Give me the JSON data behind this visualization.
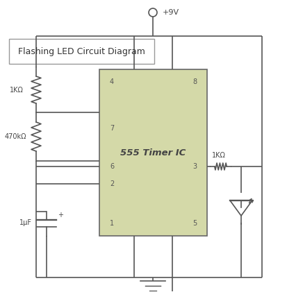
{
  "title": "Flashing LED Circuit Diagram",
  "bg_color": "#ffffff",
  "ic_box_color": "#d4d9a8",
  "ic_label": "555 Timer IC",
  "wire_color": "#555555",
  "text_color": "#444444",
  "vcc_label": "+9V",
  "r1_label": "1KΩ",
  "r2_label": "470kΩ",
  "r3_label": "1KΩ",
  "cap_label": "1μF",
  "pin_font": 7,
  "label_font": 7,
  "title_font": 9
}
